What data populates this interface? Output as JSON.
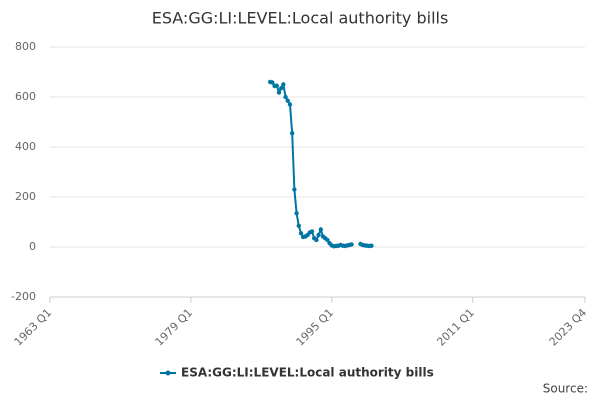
{
  "chart_data": {
    "type": "line",
    "title": "ESA:GG:LI:LEVEL:Local authority bills",
    "x": [
      1988.0,
      1988.25,
      1988.5,
      1988.75,
      1989.0,
      1989.25,
      1989.5,
      1989.75,
      1990.0,
      1990.25,
      1990.5,
      1990.75,
      1991.0,
      1991.25,
      1991.5,
      1991.75,
      1992.0,
      1992.25,
      1992.5,
      1992.75,
      1993.0,
      1993.25,
      1993.5,
      1993.75,
      1994.0,
      1994.25,
      1994.5,
      1994.75,
      1995.0,
      1995.25,
      1995.5,
      1995.75,
      1996.0,
      1996.25,
      1996.5,
      1996.75,
      1997.0,
      1997.25,
      1997.5,
      1997.75,
      1998.0,
      1998.25,
      1998.5,
      1998.75,
      1999.0,
      1999.25,
      1999.5
    ],
    "series": [
      {
        "name": "ESA:GG:LI:LEVEL:Local authority bills",
        "color": "#0075a3",
        "values": [
          660,
          658,
          644,
          645,
          618,
          635,
          650,
          600,
          585,
          570,
          455,
          230,
          135,
          85,
          55,
          40,
          42,
          48,
          58,
          62,
          35,
          28,
          48,
          70,
          42,
          35,
          28,
          15,
          6,
          3,
          4,
          5,
          8,
          5,
          4,
          6,
          8,
          10,
          null,
          null,
          null,
          12,
          8,
          6,
          5,
          4,
          5
        ]
      }
    ],
    "xlim": [
      1963,
      2023.75
    ],
    "xticks": [
      {
        "value": 1963,
        "label": "1963 Q1"
      },
      {
        "value": 1979,
        "label": "1979 Q1"
      },
      {
        "value": 1995,
        "label": "1995 Q1"
      },
      {
        "value": 2011,
        "label": "2011 Q1"
      },
      {
        "value": 2023.75,
        "label": "2023 Q4"
      }
    ],
    "ylim": [
      -200,
      800
    ],
    "yticks": [
      -200,
      0,
      200,
      400,
      600,
      800
    ],
    "grid": true,
    "legend": "bottom",
    "source": "Source:"
  }
}
